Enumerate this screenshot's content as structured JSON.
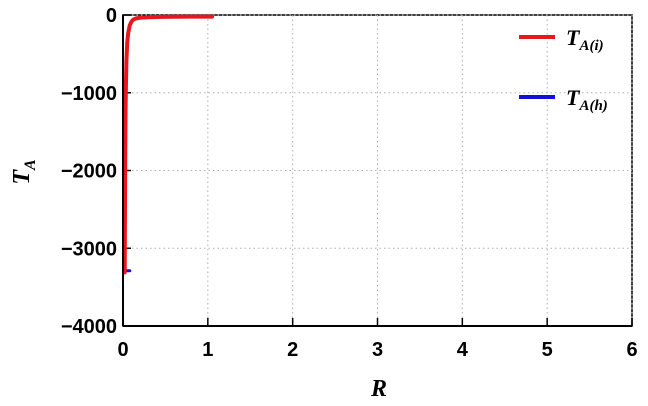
{
  "chart_data": {
    "type": "line",
    "title": "",
    "xlabel": "R",
    "ylabel_main": "T",
    "ylabel_sub": "A",
    "xlim": [
      0,
      6
    ],
    "ylim": [
      -4000,
      0
    ],
    "grid": true,
    "legend_position": "top-right",
    "x_ticks": [
      0,
      1,
      2,
      3,
      4,
      5,
      6
    ],
    "x_tick_labels": [
      "0",
      "1",
      "2",
      "3",
      "4",
      "5",
      "6"
    ],
    "y_ticks": [
      0,
      -1000,
      -2000,
      -3000,
      -4000
    ],
    "y_tick_labels": [
      "0",
      "−1000",
      "−2000",
      "−3000",
      "−4000"
    ],
    "series": [
      {
        "name_main": "T",
        "name_sub": "A(i)",
        "color": "#e8161e",
        "x": [
          0.02,
          0.023,
          0.026,
          0.03,
          0.035,
          0.04,
          0.05,
          0.06,
          0.08,
          0.1,
          0.12,
          0.15,
          0.2,
          0.3,
          0.45,
          0.6,
          0.8,
          1.05
        ],
        "y": [
          -3310,
          -2400,
          -1800,
          -1250,
          -850,
          -600,
          -360,
          -240,
          -130,
          -85,
          -60,
          -45,
          -35,
          -28,
          -24,
          -22,
          -21,
          -20
        ]
      },
      {
        "name_main": "T",
        "name_sub": "A(h)",
        "color": "#1010d8",
        "x": [
          0.02,
          0.08
        ],
        "y": [
          -3290,
          -3290
        ]
      }
    ]
  }
}
